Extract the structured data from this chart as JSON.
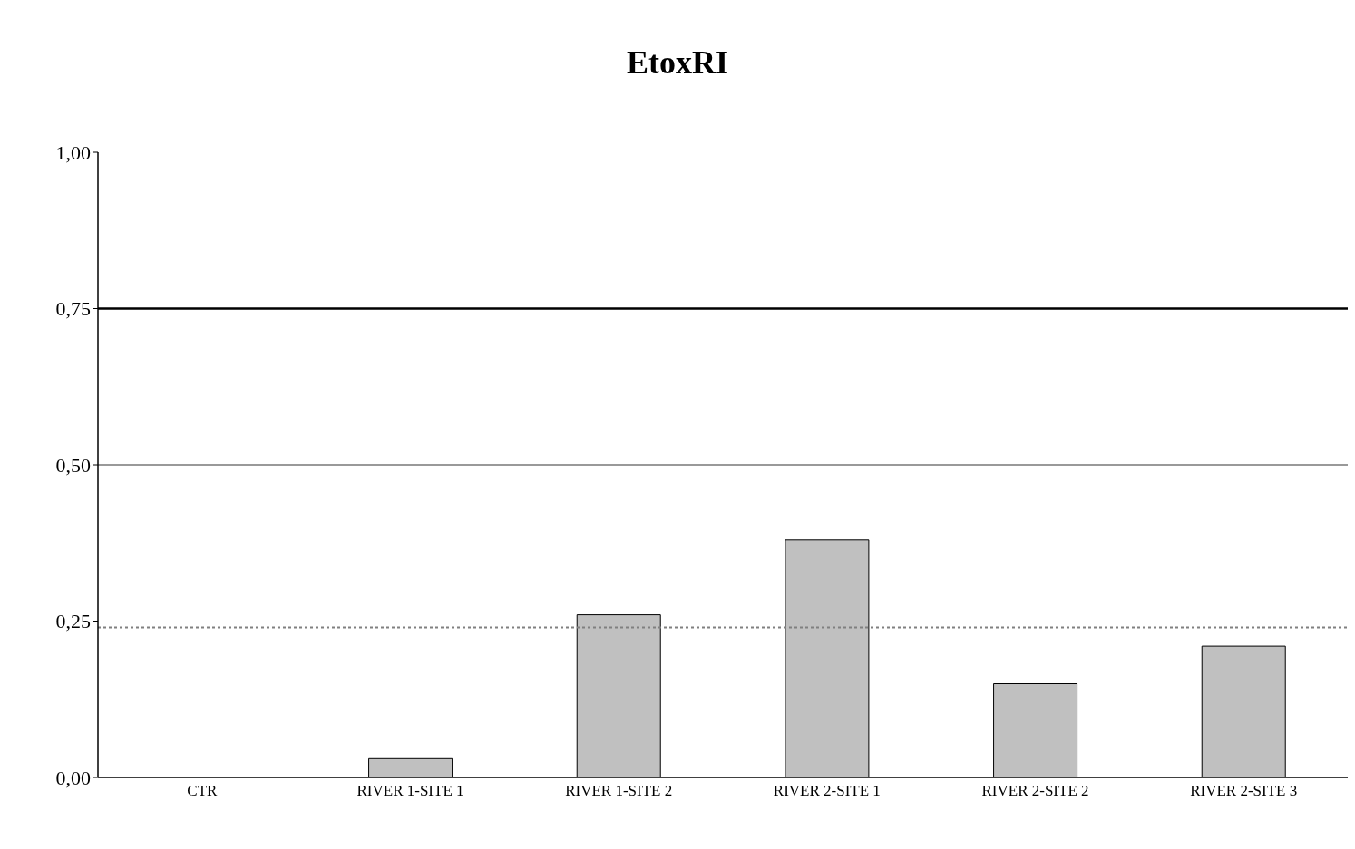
{
  "chart_data": {
    "type": "bar",
    "title": "EtoxRI",
    "categories": [
      "CTR",
      "RIVER 1-SITE 1",
      "RIVER 1-SITE 2",
      "RIVER 2-SITE 1",
      "RIVER 2-SITE 2",
      "RIVER 2-SITE 3"
    ],
    "values": [
      0,
      0.03,
      0.26,
      0.38,
      0.15,
      0.21
    ],
    "color": "#c0c0c0",
    "ylim": [
      0,
      1
    ],
    "yticks": [
      {
        "value": 0,
        "label": "0,00"
      },
      {
        "value": 0.25,
        "label": "0,25"
      },
      {
        "value": 0.5,
        "label": "0,50"
      },
      {
        "value": 0.75,
        "label": "0,75"
      },
      {
        "value": 1,
        "label": "1,00"
      }
    ],
    "ref_lines": [
      {
        "axis": "y",
        "value": 0.75,
        "color": "#000000",
        "line_style": "solid"
      },
      {
        "axis": "y",
        "value": 0.5,
        "color": "#999999",
        "line_style": "solid"
      },
      {
        "axis": "y",
        "value": 0.24,
        "color": "#808080",
        "line_style": "dotted"
      }
    ],
    "grid": false,
    "legend": false
  }
}
